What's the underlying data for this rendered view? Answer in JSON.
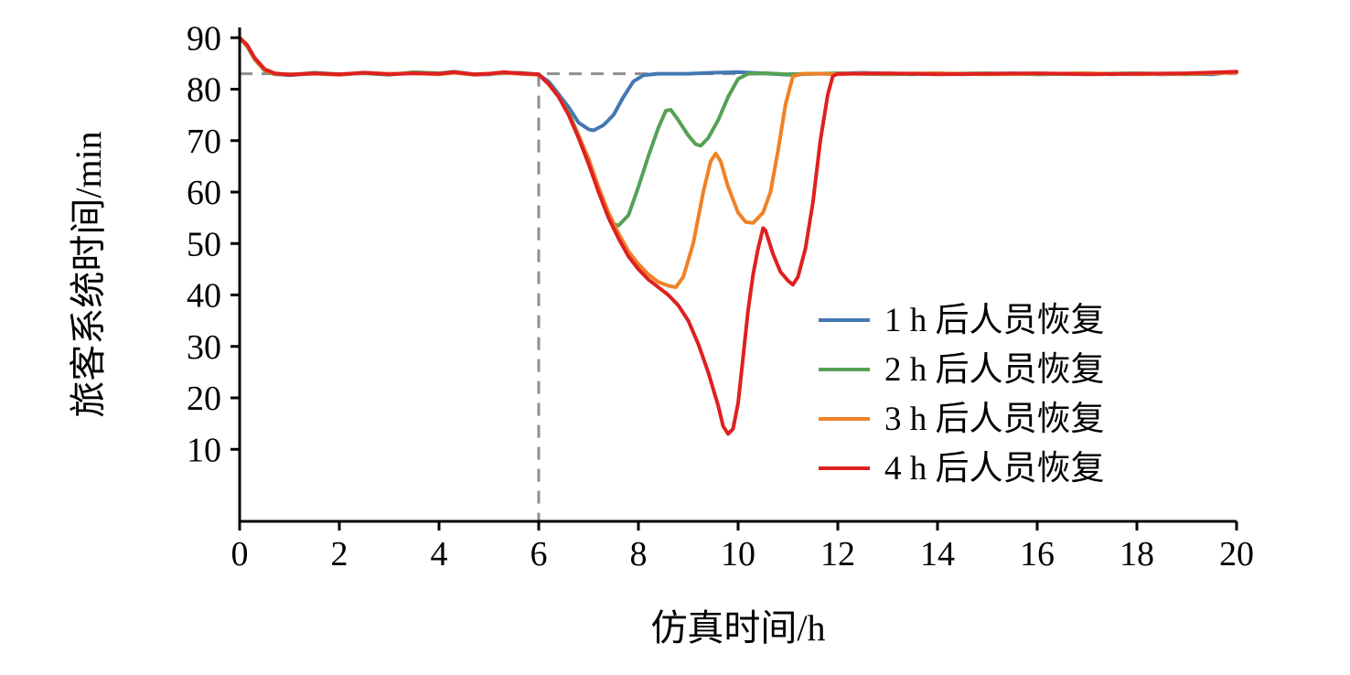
{
  "chart_data": {
    "type": "line",
    "title": "",
    "xlabel": "仿真时间/h",
    "ylabel": "旅客系统时间/min",
    "xlim": [
      0,
      20
    ],
    "ylim": [
      -4,
      92
    ],
    "xticks": [
      0,
      2,
      4,
      6,
      8,
      10,
      12,
      14,
      16,
      18,
      20
    ],
    "yticks": [
      10,
      20,
      30,
      40,
      50,
      60,
      70,
      80,
      90
    ],
    "grid": false,
    "legend_position": "center-right",
    "reference_lines": {
      "horizontal_y": 83,
      "vertical_x": 6,
      "color": "#8f8f8f",
      "style": "dashed"
    },
    "series": [
      {
        "name": "1 h 后人员恢复",
        "color": "#4477b2",
        "points": [
          [
            0,
            90
          ],
          [
            0.15,
            88.5
          ],
          [
            0.3,
            86
          ],
          [
            0.5,
            83.8
          ],
          [
            0.7,
            83
          ],
          [
            1,
            82.7
          ],
          [
            1.5,
            83.1
          ],
          [
            2,
            82.8
          ],
          [
            2.5,
            83.2
          ],
          [
            3,
            82.9
          ],
          [
            3.5,
            83.2
          ],
          [
            4,
            83
          ],
          [
            4.3,
            83.3
          ],
          [
            4.7,
            82.8
          ],
          [
            5,
            82.9
          ],
          [
            5.3,
            83.2
          ],
          [
            5.6,
            83.1
          ],
          [
            6,
            82.8
          ],
          [
            6.2,
            81.5
          ],
          [
            6.4,
            79
          ],
          [
            6.6,
            76.5
          ],
          [
            6.8,
            73.5
          ],
          [
            7.0,
            72.2
          ],
          [
            7.1,
            72
          ],
          [
            7.3,
            73
          ],
          [
            7.5,
            75
          ],
          [
            7.7,
            78.5
          ],
          [
            7.9,
            81.5
          ],
          [
            8.1,
            82.7
          ],
          [
            8.4,
            83
          ],
          [
            9,
            83
          ],
          [
            9.5,
            83.2
          ],
          [
            10,
            83.3
          ],
          [
            10.5,
            83.1
          ],
          [
            11,
            82.8
          ],
          [
            11.5,
            83
          ],
          [
            12,
            83
          ],
          [
            12.5,
            83.2
          ],
          [
            13,
            83
          ],
          [
            13.5,
            82.9
          ],
          [
            14,
            83.1
          ],
          [
            14.5,
            82.9
          ],
          [
            15,
            83
          ],
          [
            15.5,
            83.1
          ],
          [
            16,
            82.9
          ],
          [
            16.5,
            83
          ],
          [
            17,
            83.1
          ],
          [
            17.5,
            82.9
          ],
          [
            18,
            83
          ],
          [
            18.5,
            82.9
          ],
          [
            19,
            83
          ],
          [
            19.5,
            82.9
          ],
          [
            20,
            83.4
          ]
        ]
      },
      {
        "name": "2 h 后人员恢复",
        "color": "#55a155",
        "points": [
          [
            0,
            90
          ],
          [
            0.15,
            88.3
          ],
          [
            0.3,
            85.8
          ],
          [
            0.5,
            83.6
          ],
          [
            0.7,
            82.9
          ],
          [
            1,
            82.8
          ],
          [
            1.5,
            83.2
          ],
          [
            2,
            82.9
          ],
          [
            2.5,
            83.1
          ],
          [
            3,
            82.8
          ],
          [
            3.5,
            83.3
          ],
          [
            4,
            83.1
          ],
          [
            4.3,
            83.4
          ],
          [
            4.7,
            82.9
          ],
          [
            5,
            83
          ],
          [
            5.3,
            83.1
          ],
          [
            5.6,
            83.2
          ],
          [
            6,
            82.9
          ],
          [
            6.2,
            81
          ],
          [
            6.4,
            78.5
          ],
          [
            6.6,
            75.5
          ],
          [
            6.8,
            71
          ],
          [
            7.0,
            66
          ],
          [
            7.2,
            60.5
          ],
          [
            7.4,
            55.5
          ],
          [
            7.5,
            53.8
          ],
          [
            7.6,
            53.5
          ],
          [
            7.8,
            55.5
          ],
          [
            8.0,
            61
          ],
          [
            8.2,
            67
          ],
          [
            8.4,
            72.5
          ],
          [
            8.55,
            75.8
          ],
          [
            8.65,
            76
          ],
          [
            8.8,
            74
          ],
          [
            9.0,
            71
          ],
          [
            9.15,
            69.3
          ],
          [
            9.25,
            69
          ],
          [
            9.4,
            70.5
          ],
          [
            9.6,
            74
          ],
          [
            9.8,
            78.5
          ],
          [
            10.0,
            82
          ],
          [
            10.2,
            83
          ],
          [
            10.6,
            83.1
          ],
          [
            11,
            82.9
          ],
          [
            11.5,
            83
          ],
          [
            12,
            83.1
          ],
          [
            13,
            82.9
          ],
          [
            14,
            83
          ],
          [
            15,
            83.1
          ],
          [
            16,
            82.9
          ],
          [
            17,
            83
          ],
          [
            18,
            83.1
          ],
          [
            19,
            82.9
          ],
          [
            20,
            83.3
          ]
        ]
      },
      {
        "name": "3 h 后人员恢复",
        "color": "#f08126",
        "points": [
          [
            0,
            90
          ],
          [
            0.15,
            88.4
          ],
          [
            0.3,
            85.9
          ],
          [
            0.5,
            83.7
          ],
          [
            0.7,
            83
          ],
          [
            1,
            82.9
          ],
          [
            1.5,
            83
          ],
          [
            2,
            82.8
          ],
          [
            2.5,
            83.2
          ],
          [
            3,
            83
          ],
          [
            3.5,
            83.1
          ],
          [
            4,
            82.9
          ],
          [
            4.3,
            83.2
          ],
          [
            4.7,
            82.8
          ],
          [
            5,
            83
          ],
          [
            5.3,
            83.2
          ],
          [
            5.6,
            83
          ],
          [
            6,
            82.8
          ],
          [
            6.2,
            81
          ],
          [
            6.4,
            78.5
          ],
          [
            6.6,
            75
          ],
          [
            6.8,
            71
          ],
          [
            7.0,
            66.5
          ],
          [
            7.2,
            61
          ],
          [
            7.4,
            56
          ],
          [
            7.6,
            52
          ],
          [
            7.8,
            48.5
          ],
          [
            8.0,
            46
          ],
          [
            8.2,
            44
          ],
          [
            8.4,
            42.5
          ],
          [
            8.6,
            41.8
          ],
          [
            8.75,
            41.5
          ],
          [
            8.9,
            43.5
          ],
          [
            9.1,
            50
          ],
          [
            9.3,
            60
          ],
          [
            9.45,
            66
          ],
          [
            9.55,
            67.5
          ],
          [
            9.65,
            66
          ],
          [
            9.8,
            61
          ],
          [
            10.0,
            56
          ],
          [
            10.15,
            54.2
          ],
          [
            10.3,
            54
          ],
          [
            10.5,
            56
          ],
          [
            10.65,
            60
          ],
          [
            10.8,
            68
          ],
          [
            10.95,
            77
          ],
          [
            11.1,
            82.5
          ],
          [
            11.3,
            83
          ],
          [
            11.7,
            83
          ],
          [
            12,
            82.9
          ],
          [
            12.5,
            83.1
          ],
          [
            13,
            83
          ],
          [
            14,
            83.1
          ],
          [
            15,
            82.9
          ],
          [
            16,
            83
          ],
          [
            17,
            83.1
          ],
          [
            18,
            82.9
          ],
          [
            19,
            83
          ],
          [
            20,
            83.2
          ]
        ]
      },
      {
        "name": "4 h 后人员恢复",
        "color": "#df2020",
        "points": [
          [
            0,
            90
          ],
          [
            0.15,
            88.6
          ],
          [
            0.3,
            86.1
          ],
          [
            0.5,
            83.9
          ],
          [
            0.7,
            83.1
          ],
          [
            1,
            82.8
          ],
          [
            1.5,
            83.1
          ],
          [
            2,
            82.9
          ],
          [
            2.5,
            83.2
          ],
          [
            3,
            82.9
          ],
          [
            3.5,
            83.1
          ],
          [
            4,
            83
          ],
          [
            4.3,
            83.3
          ],
          [
            4.7,
            82.9
          ],
          [
            5,
            83
          ],
          [
            5.3,
            83.3
          ],
          [
            5.6,
            83.1
          ],
          [
            6,
            82.9
          ],
          [
            6.2,
            81
          ],
          [
            6.4,
            78.5
          ],
          [
            6.6,
            75
          ],
          [
            6.8,
            70.5
          ],
          [
            7.0,
            65.5
          ],
          [
            7.2,
            60
          ],
          [
            7.4,
            55
          ],
          [
            7.6,
            51
          ],
          [
            7.8,
            47.5
          ],
          [
            8.0,
            45
          ],
          [
            8.2,
            43
          ],
          [
            8.4,
            41.5
          ],
          [
            8.6,
            40
          ],
          [
            8.8,
            38
          ],
          [
            9.0,
            35
          ],
          [
            9.2,
            30.5
          ],
          [
            9.4,
            25
          ],
          [
            9.6,
            18.5
          ],
          [
            9.7,
            14.5
          ],
          [
            9.8,
            13
          ],
          [
            9.9,
            14
          ],
          [
            10.0,
            19
          ],
          [
            10.1,
            28
          ],
          [
            10.2,
            37
          ],
          [
            10.3,
            44
          ],
          [
            10.4,
            49
          ],
          [
            10.5,
            53
          ],
          [
            10.55,
            52.5
          ],
          [
            10.7,
            48
          ],
          [
            10.85,
            44.5
          ],
          [
            11.0,
            42.8
          ],
          [
            11.1,
            42
          ],
          [
            11.2,
            43.5
          ],
          [
            11.35,
            49
          ],
          [
            11.5,
            58
          ],
          [
            11.65,
            70
          ],
          [
            11.8,
            79
          ],
          [
            11.9,
            82.5
          ],
          [
            12.0,
            83
          ],
          [
            12.5,
            83
          ],
          [
            13,
            83.1
          ],
          [
            14,
            82.9
          ],
          [
            15,
            83
          ],
          [
            16,
            83.1
          ],
          [
            17,
            82.9
          ],
          [
            18,
            83
          ],
          [
            19,
            83.1
          ],
          [
            20,
            83.4
          ]
        ]
      }
    ]
  }
}
